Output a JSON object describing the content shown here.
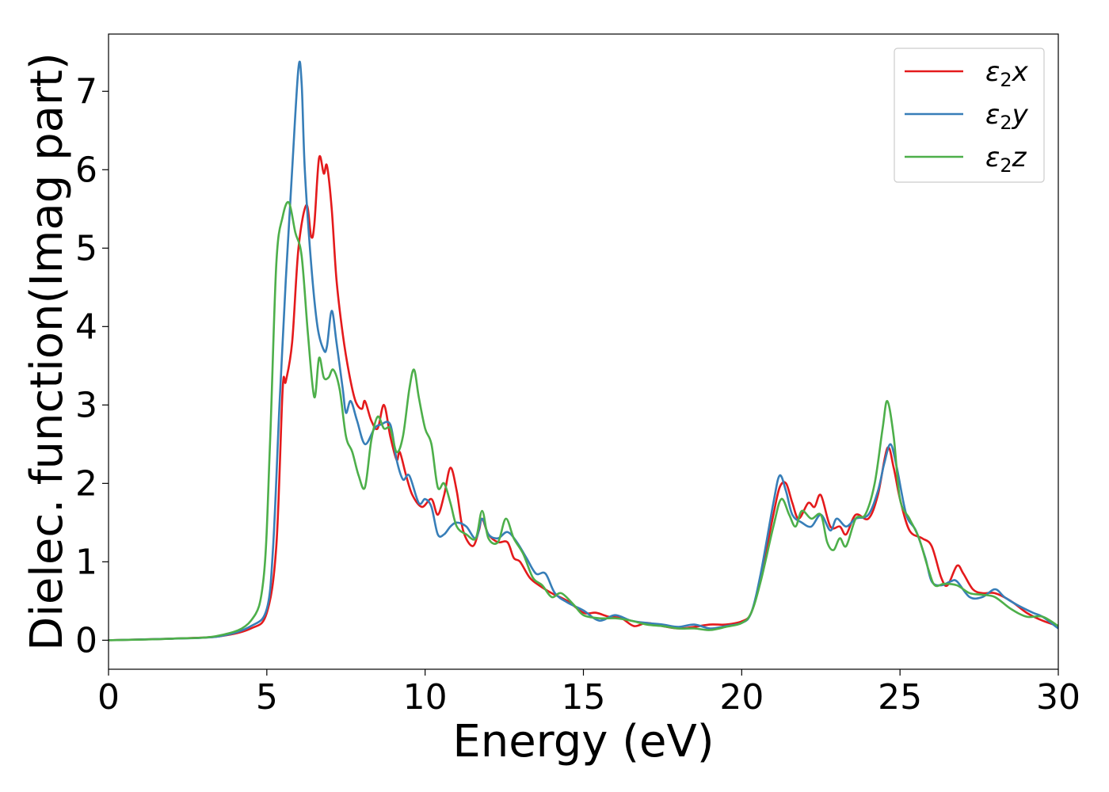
{
  "chart_data": {
    "type": "line",
    "xlabel": "Energy (eV)",
    "ylabel": "Dielec. function(Imag part)",
    "xlim": [
      0,
      30
    ],
    "ylim": [
      -0.37,
      7.73
    ],
    "x_ticks": [
      "0",
      "5",
      "10",
      "15",
      "20",
      "25",
      "30"
    ],
    "y_ticks": [
      "0",
      "1",
      "2",
      "3",
      "4",
      "5",
      "6",
      "7"
    ],
    "grid": false,
    "legend_position": "top-right",
    "series": [
      {
        "name": "ε₂x",
        "legend_base": "ε",
        "legend_sub": "2",
        "legend_var": "x",
        "color": "#e41a1c",
        "points": [
          [
            0,
            0.0
          ],
          [
            2,
            0.02
          ],
          [
            3.5,
            0.05
          ],
          [
            4.5,
            0.15
          ],
          [
            5.0,
            0.35
          ],
          [
            5.3,
            1.2
          ],
          [
            5.5,
            3.2
          ],
          [
            5.6,
            3.3
          ],
          [
            5.8,
            3.8
          ],
          [
            6.0,
            5.0
          ],
          [
            6.25,
            5.55
          ],
          [
            6.4,
            5.15
          ],
          [
            6.5,
            5.3
          ],
          [
            6.65,
            6.15
          ],
          [
            6.8,
            5.95
          ],
          [
            6.9,
            6.05
          ],
          [
            7.05,
            5.5
          ],
          [
            7.2,
            4.6
          ],
          [
            7.4,
            3.9
          ],
          [
            7.6,
            3.4
          ],
          [
            7.8,
            3.05
          ],
          [
            8.0,
            2.95
          ],
          [
            8.1,
            3.05
          ],
          [
            8.3,
            2.8
          ],
          [
            8.5,
            2.7
          ],
          [
            8.7,
            3.0
          ],
          [
            8.9,
            2.6
          ],
          [
            9.1,
            2.3
          ],
          [
            9.2,
            2.4
          ],
          [
            9.4,
            2.1
          ],
          [
            9.6,
            1.85
          ],
          [
            9.9,
            1.7
          ],
          [
            10.2,
            1.8
          ],
          [
            10.4,
            1.6
          ],
          [
            10.6,
            1.85
          ],
          [
            10.8,
            2.2
          ],
          [
            11.0,
            1.9
          ],
          [
            11.2,
            1.4
          ],
          [
            11.5,
            1.2
          ],
          [
            11.7,
            1.4
          ],
          [
            11.8,
            1.55
          ],
          [
            12.0,
            1.35
          ],
          [
            12.3,
            1.25
          ],
          [
            12.6,
            1.25
          ],
          [
            12.8,
            1.05
          ],
          [
            13.0,
            1.0
          ],
          [
            13.3,
            0.8
          ],
          [
            13.6,
            0.7
          ],
          [
            14.0,
            0.6
          ],
          [
            14.5,
            0.5
          ],
          [
            15.0,
            0.35
          ],
          [
            15.4,
            0.35
          ],
          [
            15.8,
            0.3
          ],
          [
            16.2,
            0.28
          ],
          [
            16.6,
            0.18
          ],
          [
            17.0,
            0.22
          ],
          [
            17.5,
            0.18
          ],
          [
            18.0,
            0.15
          ],
          [
            18.5,
            0.17
          ],
          [
            19.0,
            0.2
          ],
          [
            19.5,
            0.2
          ],
          [
            20.0,
            0.24
          ],
          [
            20.3,
            0.35
          ],
          [
            20.6,
            0.8
          ],
          [
            21.0,
            1.6
          ],
          [
            21.2,
            1.95
          ],
          [
            21.4,
            2.0
          ],
          [
            21.6,
            1.75
          ],
          [
            21.8,
            1.55
          ],
          [
            22.1,
            1.75
          ],
          [
            22.3,
            1.7
          ],
          [
            22.5,
            1.85
          ],
          [
            22.8,
            1.45
          ],
          [
            23.1,
            1.45
          ],
          [
            23.3,
            1.35
          ],
          [
            23.6,
            1.6
          ],
          [
            24.0,
            1.55
          ],
          [
            24.3,
            1.85
          ],
          [
            24.6,
            2.45
          ],
          [
            24.8,
            2.2
          ],
          [
            25.0,
            1.8
          ],
          [
            25.3,
            1.4
          ],
          [
            25.7,
            1.3
          ],
          [
            26.0,
            1.2
          ],
          [
            26.3,
            0.8
          ],
          [
            26.5,
            0.7
          ],
          [
            26.8,
            0.95
          ],
          [
            27.0,
            0.85
          ],
          [
            27.3,
            0.65
          ],
          [
            27.6,
            0.6
          ],
          [
            28.0,
            0.6
          ],
          [
            28.5,
            0.5
          ],
          [
            29.0,
            0.35
          ],
          [
            29.5,
            0.25
          ],
          [
            30.0,
            0.18
          ]
        ]
      },
      {
        "name": "ε₂y",
        "legend_base": "ε",
        "legend_sub": "2",
        "legend_var": "y",
        "color": "#377eb8",
        "points": [
          [
            0,
            0.0
          ],
          [
            2,
            0.02
          ],
          [
            3.5,
            0.05
          ],
          [
            4.5,
            0.18
          ],
          [
            5.0,
            0.4
          ],
          [
            5.2,
            1.2
          ],
          [
            5.4,
            3.0
          ],
          [
            5.6,
            4.6
          ],
          [
            5.8,
            6.0
          ],
          [
            6.0,
            7.3
          ],
          [
            6.1,
            7.1
          ],
          [
            6.2,
            6.0
          ],
          [
            6.4,
            4.8
          ],
          [
            6.6,
            4.0
          ],
          [
            6.8,
            3.7
          ],
          [
            6.9,
            3.75
          ],
          [
            7.05,
            4.2
          ],
          [
            7.2,
            3.8
          ],
          [
            7.4,
            3.2
          ],
          [
            7.5,
            2.9
          ],
          [
            7.65,
            3.05
          ],
          [
            7.85,
            2.8
          ],
          [
            8.1,
            2.5
          ],
          [
            8.4,
            2.7
          ],
          [
            8.6,
            2.75
          ],
          [
            8.9,
            2.75
          ],
          [
            9.1,
            2.3
          ],
          [
            9.3,
            2.05
          ],
          [
            9.5,
            2.1
          ],
          [
            9.8,
            1.75
          ],
          [
            10.0,
            1.8
          ],
          [
            10.2,
            1.7
          ],
          [
            10.4,
            1.35
          ],
          [
            10.6,
            1.35
          ],
          [
            10.8,
            1.45
          ],
          [
            11.0,
            1.5
          ],
          [
            11.3,
            1.45
          ],
          [
            11.6,
            1.3
          ],
          [
            11.8,
            1.55
          ],
          [
            12.0,
            1.35
          ],
          [
            12.3,
            1.3
          ],
          [
            12.6,
            1.38
          ],
          [
            12.9,
            1.25
          ],
          [
            13.2,
            1.05
          ],
          [
            13.5,
            0.85
          ],
          [
            13.8,
            0.85
          ],
          [
            14.1,
            0.6
          ],
          [
            14.5,
            0.48
          ],
          [
            15.0,
            0.38
          ],
          [
            15.5,
            0.25
          ],
          [
            16.0,
            0.32
          ],
          [
            16.5,
            0.25
          ],
          [
            17.0,
            0.22
          ],
          [
            17.5,
            0.2
          ],
          [
            18.0,
            0.17
          ],
          [
            18.5,
            0.2
          ],
          [
            19.0,
            0.15
          ],
          [
            19.5,
            0.18
          ],
          [
            20.0,
            0.22
          ],
          [
            20.3,
            0.35
          ],
          [
            20.6,
            0.85
          ],
          [
            21.0,
            1.75
          ],
          [
            21.2,
            2.1
          ],
          [
            21.4,
            1.9
          ],
          [
            21.6,
            1.6
          ],
          [
            21.9,
            1.5
          ],
          [
            22.2,
            1.45
          ],
          [
            22.5,
            1.6
          ],
          [
            22.8,
            1.4
          ],
          [
            23.0,
            1.55
          ],
          [
            23.3,
            1.45
          ],
          [
            23.6,
            1.55
          ],
          [
            24.0,
            1.6
          ],
          [
            24.3,
            1.9
          ],
          [
            24.5,
            2.25
          ],
          [
            24.7,
            2.5
          ],
          [
            24.9,
            2.2
          ],
          [
            25.2,
            1.6
          ],
          [
            25.5,
            1.4
          ],
          [
            25.8,
            1.05
          ],
          [
            26.0,
            0.75
          ],
          [
            26.3,
            0.7
          ],
          [
            26.6,
            0.75
          ],
          [
            26.8,
            0.75
          ],
          [
            27.2,
            0.55
          ],
          [
            27.6,
            0.55
          ],
          [
            28.0,
            0.65
          ],
          [
            28.3,
            0.55
          ],
          [
            28.7,
            0.45
          ],
          [
            29.2,
            0.35
          ],
          [
            29.5,
            0.3
          ],
          [
            30.0,
            0.15
          ]
        ]
      },
      {
        "name": "ε₂z",
        "legend_base": "ε",
        "legend_sub": "2",
        "legend_var": "z",
        "color": "#4daf4a",
        "points": [
          [
            0,
            0.0
          ],
          [
            2,
            0.02
          ],
          [
            3.5,
            0.06
          ],
          [
            4.5,
            0.25
          ],
          [
            4.9,
            0.8
          ],
          [
            5.1,
            2.5
          ],
          [
            5.3,
            4.8
          ],
          [
            5.5,
            5.4
          ],
          [
            5.7,
            5.58
          ],
          [
            5.9,
            5.2
          ],
          [
            6.1,
            4.9
          ],
          [
            6.3,
            3.9
          ],
          [
            6.5,
            3.1
          ],
          [
            6.65,
            3.6
          ],
          [
            6.8,
            3.35
          ],
          [
            6.95,
            3.35
          ],
          [
            7.1,
            3.45
          ],
          [
            7.3,
            3.2
          ],
          [
            7.5,
            2.6
          ],
          [
            7.7,
            2.4
          ],
          [
            7.9,
            2.1
          ],
          [
            8.1,
            1.95
          ],
          [
            8.3,
            2.55
          ],
          [
            8.5,
            2.85
          ],
          [
            8.7,
            2.7
          ],
          [
            8.9,
            2.7
          ],
          [
            9.1,
            2.4
          ],
          [
            9.3,
            2.6
          ],
          [
            9.5,
            3.2
          ],
          [
            9.65,
            3.45
          ],
          [
            9.8,
            3.1
          ],
          [
            10.0,
            2.7
          ],
          [
            10.2,
            2.5
          ],
          [
            10.4,
            1.95
          ],
          [
            10.6,
            2.0
          ],
          [
            10.8,
            1.75
          ],
          [
            11.0,
            1.45
          ],
          [
            11.3,
            1.35
          ],
          [
            11.6,
            1.3
          ],
          [
            11.8,
            1.65
          ],
          [
            12.0,
            1.3
          ],
          [
            12.3,
            1.25
          ],
          [
            12.55,
            1.55
          ],
          [
            12.8,
            1.3
          ],
          [
            13.1,
            1.1
          ],
          [
            13.4,
            0.8
          ],
          [
            13.7,
            0.7
          ],
          [
            14.0,
            0.55
          ],
          [
            14.3,
            0.6
          ],
          [
            14.7,
            0.45
          ],
          [
            15.0,
            0.32
          ],
          [
            15.5,
            0.28
          ],
          [
            16.0,
            0.28
          ],
          [
            16.5,
            0.25
          ],
          [
            17.0,
            0.2
          ],
          [
            17.5,
            0.18
          ],
          [
            18.0,
            0.15
          ],
          [
            18.5,
            0.15
          ],
          [
            19.0,
            0.13
          ],
          [
            19.5,
            0.17
          ],
          [
            20.0,
            0.22
          ],
          [
            20.3,
            0.35
          ],
          [
            20.6,
            0.75
          ],
          [
            21.0,
            1.45
          ],
          [
            21.25,
            1.8
          ],
          [
            21.5,
            1.6
          ],
          [
            21.7,
            1.45
          ],
          [
            21.9,
            1.65
          ],
          [
            22.2,
            1.55
          ],
          [
            22.5,
            1.6
          ],
          [
            22.7,
            1.25
          ],
          [
            22.9,
            1.15
          ],
          [
            23.1,
            1.3
          ],
          [
            23.3,
            1.2
          ],
          [
            23.6,
            1.55
          ],
          [
            23.9,
            1.6
          ],
          [
            24.2,
            2.0
          ],
          [
            24.45,
            2.7
          ],
          [
            24.6,
            3.05
          ],
          [
            24.8,
            2.6
          ],
          [
            25.0,
            1.8
          ],
          [
            25.3,
            1.55
          ],
          [
            25.6,
            1.3
          ],
          [
            25.9,
            0.9
          ],
          [
            26.1,
            0.7
          ],
          [
            26.4,
            0.72
          ],
          [
            26.8,
            0.7
          ],
          [
            27.2,
            0.6
          ],
          [
            27.6,
            0.58
          ],
          [
            28.0,
            0.55
          ],
          [
            28.5,
            0.4
          ],
          [
            29.0,
            0.3
          ],
          [
            29.5,
            0.3
          ],
          [
            30.0,
            0.18
          ]
        ]
      }
    ]
  }
}
